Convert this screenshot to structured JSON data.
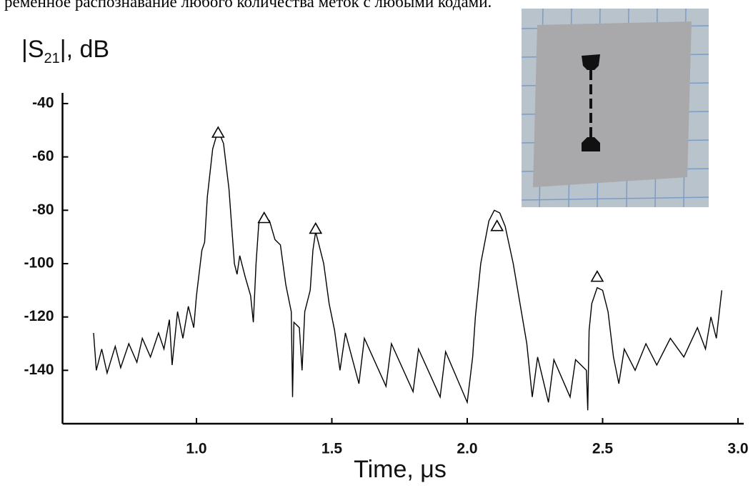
{
  "caption": "ременное распознавание любого количества меток с любыми кодами.",
  "chart_data": {
    "type": "line",
    "ylabel_parts": [
      "|S",
      "21",
      "|, dB"
    ],
    "xlabel": "Time,  μs",
    "xlim": [
      0.5,
      3.0
    ],
    "ylim": [
      -160,
      -36
    ],
    "xticks": [
      {
        "value": 1,
        "label": "1.0"
      },
      1.5,
      {
        "value": 2,
        "label": "2.0"
      },
      2.5,
      {
        "value": 3,
        "label": "3.0"
      }
    ],
    "yticks": [
      -40,
      -60,
      -80,
      -100,
      -120,
      -140
    ],
    "series": [
      {
        "kind": "line",
        "color": "#000000",
        "x": [
          0.62,
          0.63,
          0.65,
          0.67,
          0.7,
          0.72,
          0.75,
          0.78,
          0.8,
          0.83,
          0.86,
          0.88,
          0.9,
          0.91,
          0.93,
          0.95,
          0.97,
          0.99,
          1.0,
          1.02,
          1.03,
          1.04,
          1.06,
          1.08,
          1.1,
          1.12,
          1.14,
          1.15,
          1.16,
          1.18,
          1.2,
          1.21,
          1.22,
          1.23,
          1.25,
          1.27,
          1.29,
          1.31,
          1.33,
          1.35,
          1.355,
          1.36,
          1.38,
          1.39,
          1.4,
          1.42,
          1.43,
          1.44,
          1.45,
          1.47,
          1.49,
          1.51,
          1.53,
          1.55,
          1.6,
          1.62,
          1.7,
          1.72,
          1.8,
          1.82,
          1.9,
          1.92,
          2.0,
          2.02,
          2.03,
          2.05,
          2.08,
          2.1,
          2.12,
          2.14,
          2.17,
          2.2,
          2.22,
          2.24,
          2.26,
          2.3,
          2.32,
          2.38,
          2.4,
          2.44,
          2.445,
          2.45,
          2.46,
          2.48,
          2.5,
          2.52,
          2.54,
          2.56,
          2.58,
          2.62,
          2.66,
          2.7,
          2.75,
          2.8,
          2.85,
          2.88,
          2.9,
          2.92,
          2.94
        ],
        "values": [
          -126,
          -140,
          -132,
          -141,
          -131,
          -139,
          -130,
          -137,
          -128,
          -135,
          -126,
          -132,
          -121,
          -138,
          -118,
          -128,
          -116,
          -124,
          -112,
          -95,
          -92,
          -75,
          -57,
          -50,
          -55,
          -72,
          -100,
          -104,
          -97,
          -105,
          -112,
          -122,
          -100,
          -85,
          -82,
          -84,
          -91,
          -93,
          -108,
          -118,
          -150,
          -122,
          -124,
          -140,
          -118,
          -110,
          -95,
          -88,
          -92,
          -100,
          -115,
          -125,
          -140,
          -126,
          -145,
          -128,
          -146,
          -130,
          -148,
          -132,
          -150,
          -133,
          -152,
          -135,
          -120,
          -100,
          -84,
          -80,
          -81,
          -86,
          -100,
          -118,
          -130,
          -150,
          -135,
          -152,
          -136,
          -150,
          -136,
          -140,
          -155,
          -125,
          -115,
          -109,
          -110,
          -118,
          -135,
          -145,
          -132,
          -140,
          -130,
          -138,
          -128,
          -135,
          -124,
          -132,
          -120,
          -128,
          -110
        ]
      },
      {
        "kind": "triangle",
        "color": "#000000",
        "x": [
          1.08,
          1.25,
          1.44,
          2.11,
          2.48
        ],
        "values": [
          -51,
          -83,
          -87,
          -86,
          -105
        ]
      }
    ]
  }
}
